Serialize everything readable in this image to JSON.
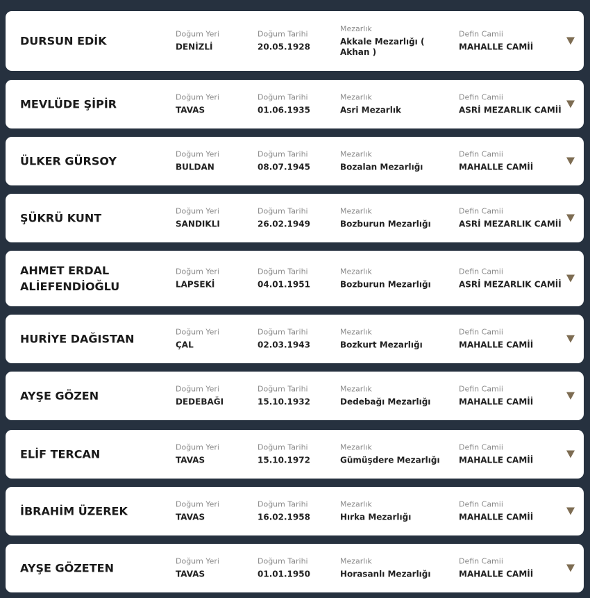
{
  "labels": {
    "birthplace": "Doğum Yeri",
    "birthdate": "Doğum Tarihi",
    "cemetery": "Mezarlık",
    "mosque": "Defin Camii"
  },
  "colors": {
    "background": "#26313f",
    "arrow": "#7d6c52"
  },
  "records": [
    {
      "name": "DURSUN EDİK",
      "birthplace": "DENİZLİ",
      "birthdate": "20.05.1928",
      "cemetery": "Akkale Mezarlığı ( Akhan )",
      "mosque": "MAHALLE CAMİİ"
    },
    {
      "name": "MEVLÜDE ŞİPİR",
      "birthplace": "TAVAS",
      "birthdate": "01.06.1935",
      "cemetery": "Asri Mezarlık",
      "mosque": "ASRİ MEZARLIK CAMİİ"
    },
    {
      "name": "ÜLKER GÜRSOY",
      "birthplace": "BULDAN",
      "birthdate": "08.07.1945",
      "cemetery": "Bozalan Mezarlığı",
      "mosque": "MAHALLE CAMİİ"
    },
    {
      "name": "ŞÜKRÜ KUNT",
      "birthplace": "SANDIKLI",
      "birthdate": "26.02.1949",
      "cemetery": "Bozburun Mezarlığı",
      "mosque": "ASRİ MEZARLIK CAMİİ"
    },
    {
      "name": "AHMET ERDAL ALİEFENDİOĞLU",
      "birthplace": "LAPSEKİ",
      "birthdate": "04.01.1951",
      "cemetery": "Bozburun Mezarlığı",
      "mosque": "ASRİ MEZARLIK CAMİİ"
    },
    {
      "name": "HURİYE DAĞISTAN",
      "birthplace": "ÇAL",
      "birthdate": "02.03.1943",
      "cemetery": "Bozkurt Mezarlığı",
      "mosque": "MAHALLE CAMİİ"
    },
    {
      "name": "AYŞE GÖZEN",
      "birthplace": "DEDEBAĞI",
      "birthdate": "15.10.1932",
      "cemetery": "Dedebağı Mezarlığı",
      "mosque": "MAHALLE CAMİİ"
    },
    {
      "name": "ELİF TERCAN",
      "birthplace": "TAVAS",
      "birthdate": "15.10.1972",
      "cemetery": "Gümüşdere Mezarlığı",
      "mosque": "MAHALLE CAMİİ"
    },
    {
      "name": "İBRAHİM ÜZEREK",
      "birthplace": "TAVAS",
      "birthdate": "16.02.1958",
      "cemetery": "Hırka Mezarlığı",
      "mosque": "MAHALLE CAMİİ"
    },
    {
      "name": "AYŞE GÖZETEN",
      "birthplace": "TAVAS",
      "birthdate": "01.01.1950",
      "cemetery": "Horasanlı Mezarlığı",
      "mosque": "MAHALLE CAMİİ"
    }
  ]
}
